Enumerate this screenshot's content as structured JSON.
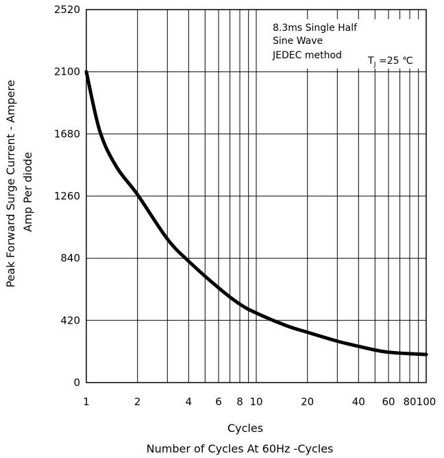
{
  "chart_data": {
    "type": "line",
    "title": "",
    "x_scale": "log",
    "xlim": [
      1,
      100
    ],
    "ylim": [
      0,
      2520
    ],
    "x_ticks": [
      1,
      2,
      4,
      6,
      8,
      10,
      20,
      40,
      60,
      80,
      100
    ],
    "x_tick_labels": [
      "1",
      "2",
      "4",
      "6",
      "8",
      "10",
      "20",
      "40",
      "60",
      "80",
      "100"
    ],
    "y_ticks": [
      0,
      420,
      840,
      1260,
      1680,
      2100,
      2520
    ],
    "y_tick_labels": [
      "0",
      "420",
      "840",
      "1260",
      "1680",
      "2100",
      "2520"
    ],
    "grid": true,
    "xlabel_line1": "Cycles",
    "xlabel_line2": "Number of Cycles At 60Hz -Cycles",
    "ylabel_line1": "Peak Forward Surge Current - Ampere",
    "ylabel_line2": "Amp   Per diode",
    "annotation": {
      "line1": "8.3ms Single Half",
      "line2": "Sine Wave",
      "line3": "JEDEC method",
      "condition": "T",
      "condition_sub": "J",
      "condition_value": " =25 ℃"
    },
    "series": [
      {
        "color": "#000000",
        "x": [
          1,
          1.2,
          1.5,
          2,
          3,
          4,
          6,
          8,
          10,
          15,
          20,
          30,
          40,
          50,
          60,
          80,
          100
        ],
        "y": [
          2100,
          1700,
          1460,
          1270,
          970,
          820,
          640,
          530,
          470,
          385,
          340,
          280,
          245,
          220,
          205,
          195,
          190
        ]
      }
    ]
  }
}
